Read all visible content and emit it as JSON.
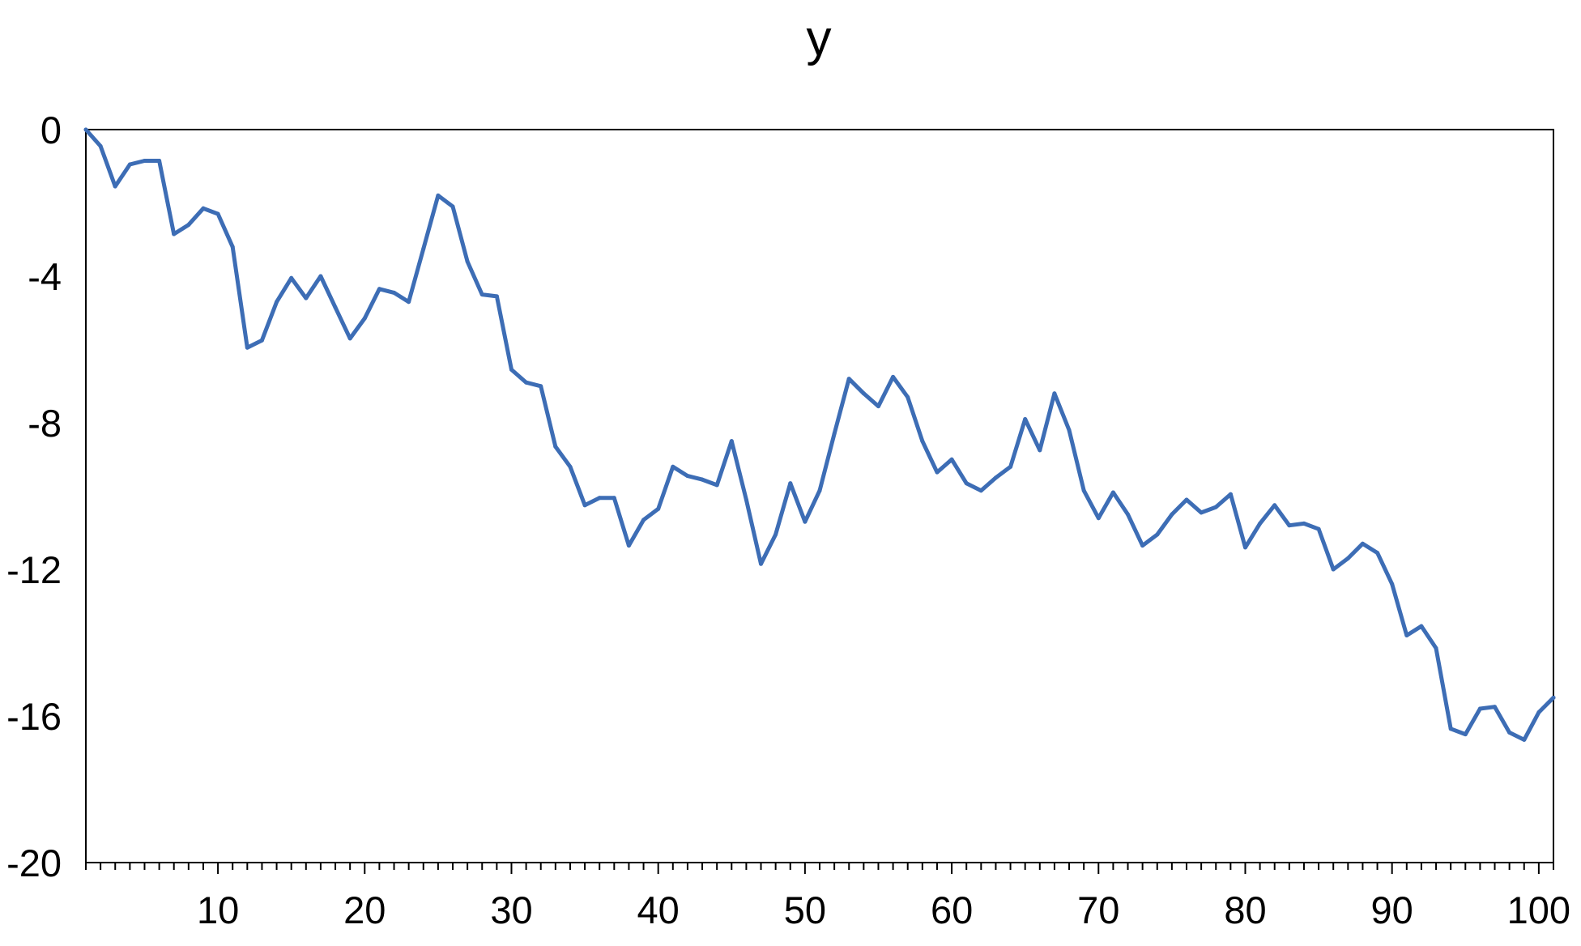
{
  "chart_data": {
    "type": "line",
    "title": "y",
    "xlabel": "",
    "ylabel": "",
    "xlim": [
      1,
      101
    ],
    "ylim": [
      -20,
      0
    ],
    "grid": false,
    "legend": "none",
    "x_ticks": [
      10,
      20,
      30,
      40,
      50,
      60,
      70,
      80,
      90,
      100
    ],
    "x_tick_labels": [
      "10",
      "20",
      "30",
      "40",
      "50",
      "60",
      "70",
      "80",
      "90",
      "100"
    ],
    "y_ticks": [
      0,
      -4,
      -8,
      -12,
      -16,
      -20
    ],
    "y_tick_labels": [
      "0",
      "-4",
      "-8",
      "-12",
      "-16",
      "-20"
    ],
    "line_color": "#3d6db5",
    "series": [
      {
        "values": [
          0.0,
          -0.45,
          -1.55,
          -0.95,
          -0.85,
          -0.85,
          -2.85,
          -2.6,
          -2.15,
          -2.3,
          -3.2,
          -5.95,
          -5.75,
          -4.7,
          -4.05,
          -4.6,
          -4.0,
          -4.85,
          -5.7,
          -5.15,
          -4.35,
          -4.45,
          -4.7,
          -3.25,
          -1.8,
          -2.1,
          -3.6,
          -4.5,
          -4.55,
          -6.55,
          -6.9,
          -7.0,
          -8.65,
          -9.2,
          -10.25,
          -10.05,
          -10.05,
          -11.35,
          -10.65,
          -10.35,
          -9.2,
          -9.45,
          -9.55,
          -9.7,
          -8.5,
          -10.1,
          -11.85,
          -11.05,
          -9.65,
          -10.7,
          -9.85,
          -8.3,
          -6.8,
          -7.2,
          -7.55,
          -6.75,
          -7.3,
          -8.5,
          -9.35,
          -9.0,
          -9.65,
          -9.85,
          -9.5,
          -9.2,
          -7.9,
          -8.75,
          -7.2,
          -8.2,
          -9.85,
          -10.6,
          -9.9,
          -10.5,
          -11.35,
          -11.05,
          -10.5,
          -10.1,
          -10.45,
          -10.3,
          -9.95,
          -11.4,
          -10.75,
          -10.25,
          -10.8,
          -10.75,
          -10.9,
          -12.0,
          -11.7,
          -11.3,
          -11.55,
          -12.4,
          -13.8,
          -13.55,
          -14.15,
          -16.35,
          -16.5,
          -15.8,
          -15.75,
          -16.45,
          -16.65,
          -15.9,
          -15.5
        ]
      }
    ]
  }
}
